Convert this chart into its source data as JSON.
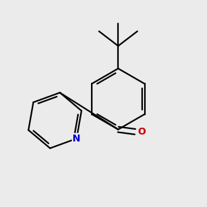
{
  "background_color": "#ebebeb",
  "line_color": "#000000",
  "nitrogen_color": "#0000cc",
  "oxygen_color": "#cc0000",
  "line_width": 1.6,
  "dbo": 0.012,
  "figsize": [
    3.0,
    3.0
  ],
  "dpi": 100
}
